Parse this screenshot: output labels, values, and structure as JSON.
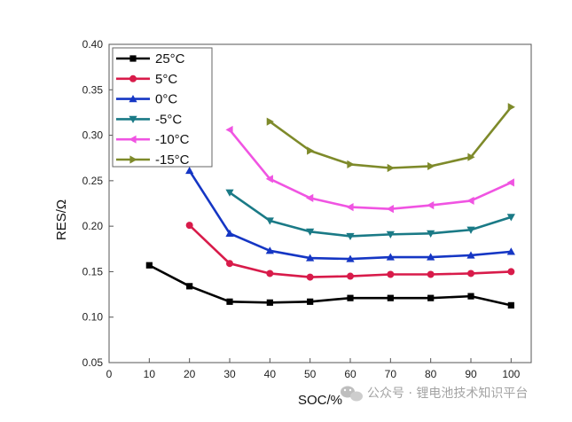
{
  "chart_data": {
    "type": "line",
    "xlabel": "SOC/%",
    "ylabel": "RES/Ω",
    "xlim": [
      0,
      105
    ],
    "ylim": [
      0.05,
      0.4
    ],
    "x_ticks": [
      "0",
      "10",
      "20",
      "30",
      "40",
      "50",
      "60",
      "70",
      "80",
      "90",
      "100"
    ],
    "x_tick_values": [
      0,
      10,
      20,
      30,
      40,
      50,
      60,
      70,
      80,
      90,
      100
    ],
    "y_ticks": [
      "0.05",
      "0.10",
      "0.15",
      "0.20",
      "0.25",
      "0.30",
      "0.35",
      "0.40"
    ],
    "y_tick_values": [
      0.05,
      0.1,
      0.15,
      0.2,
      0.25,
      0.3,
      0.35,
      0.4
    ],
    "grid": false,
    "legend_position": "top-left",
    "series": [
      {
        "name": "25°C",
        "color": "#000000",
        "marker": "square",
        "x": [
          10,
          20,
          30,
          40,
          50,
          60,
          70,
          80,
          90,
          100
        ],
        "y": [
          0.157,
          0.134,
          0.117,
          0.116,
          0.117,
          0.121,
          0.121,
          0.121,
          0.123,
          0.113
        ]
      },
      {
        "name": "5°C",
        "color": "#d81b4a",
        "marker": "circle",
        "x": [
          20,
          30,
          40,
          50,
          60,
          70,
          80,
          90,
          100
        ],
        "y": [
          0.201,
          0.159,
          0.148,
          0.144,
          0.145,
          0.147,
          0.147,
          0.148,
          0.15
        ]
      },
      {
        "name": "0°C",
        "color": "#1536c4",
        "marker": "triangle-up",
        "x": [
          20,
          30,
          40,
          50,
          60,
          70,
          80,
          90,
          100
        ],
        "y": [
          0.261,
          0.192,
          0.173,
          0.165,
          0.164,
          0.166,
          0.166,
          0.168,
          0.172
        ]
      },
      {
        "name": "-5°C",
        "color": "#1a7a86",
        "marker": "triangle-down",
        "x": [
          30,
          40,
          50,
          60,
          70,
          80,
          90,
          100
        ],
        "y": [
          0.237,
          0.206,
          0.194,
          0.189,
          0.191,
          0.192,
          0.196,
          0.21
        ]
      },
      {
        "name": "-10°C",
        "color": "#f054e2",
        "marker": "triangle-left",
        "x": [
          30,
          40,
          50,
          60,
          70,
          80,
          90,
          100
        ],
        "y": [
          0.306,
          0.252,
          0.231,
          0.221,
          0.219,
          0.223,
          0.228,
          0.248
        ]
      },
      {
        "name": "-15°C",
        "color": "#7e8a2a",
        "marker": "triangle-right",
        "x": [
          40,
          50,
          60,
          70,
          80,
          90,
          100
        ],
        "y": [
          0.315,
          0.283,
          0.268,
          0.264,
          0.266,
          0.276,
          0.331
        ]
      }
    ]
  },
  "watermark": {
    "text": "公众号 · 锂电池技术知识平台",
    "icon": "wechat-icon"
  }
}
